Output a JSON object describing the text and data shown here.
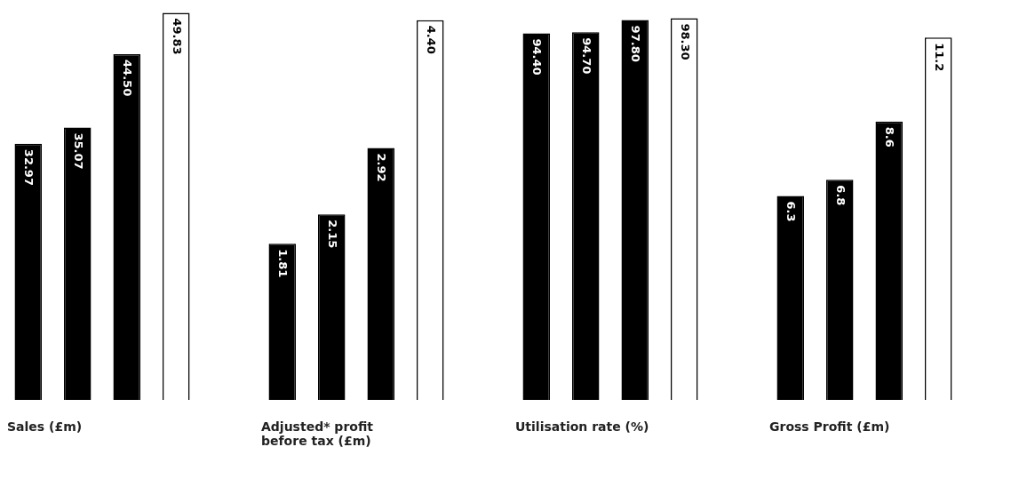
{
  "chart_data": [
    {
      "type": "bar",
      "title": "Sales (£m)",
      "categories": [
        null,
        null,
        null,
        null
      ],
      "values": [
        32.97,
        35.07,
        44.5,
        49.83
      ],
      "value_labels": [
        "32.97",
        "35.07",
        "44.50",
        "49.83"
      ],
      "colors": [
        "#000000",
        "#000000",
        "#000000",
        "#ffffff"
      ],
      "tick_labels": false
    },
    {
      "type": "bar",
      "title": "Adjusted* profit before tax (£m)",
      "categories": [
        null,
        null,
        null,
        null
      ],
      "values": [
        1.81,
        2.15,
        2.92,
        4.4
      ],
      "value_labels": [
        "1.81",
        "2.15",
        "2.92",
        "4.40"
      ],
      "colors": [
        "#000000",
        "#000000",
        "#000000",
        "#ffffff"
      ],
      "tick_labels": false
    },
    {
      "type": "bar",
      "title": "Utilisation rate (%)",
      "categories": [
        null,
        null,
        null,
        null
      ],
      "values": [
        94.4,
        94.7,
        97.8,
        98.3
      ],
      "value_labels": [
        "94.40",
        "94.70",
        "97.80",
        "98.30"
      ],
      "colors": [
        "#000000",
        "#000000",
        "#000000",
        "#ffffff"
      ],
      "tick_labels": false
    },
    {
      "type": "bar",
      "title": "Gross Profit (£m)",
      "categories": [
        null,
        null,
        null,
        null
      ],
      "values": [
        6.3,
        6.8,
        8.6,
        11.2
      ],
      "value_labels": [
        "6.3",
        "6.8",
        "8.6",
        "11.2"
      ],
      "colors": [
        "#000000",
        "#000000",
        "#000000",
        "#ffffff"
      ],
      "tick_labels": false
    }
  ]
}
